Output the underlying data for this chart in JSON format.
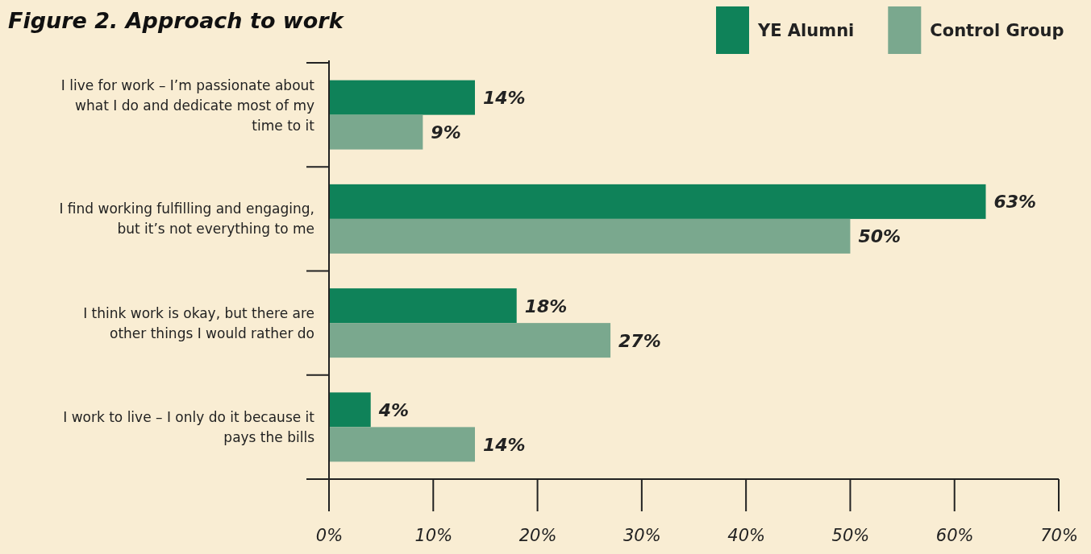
{
  "chart_data": {
    "type": "bar",
    "orientation": "horizontal",
    "title": "Figure 2. Approach to work",
    "categories": [
      "I live for work – I’m passionate about what I do and dedicate most of my time to it",
      "I find working fulfilling and engaging, but it’s not everything to me",
      "I think work is okay, but there are other things I would rather do",
      "I work to live – I only do it because it pays the bills"
    ],
    "series": [
      {
        "name": "YE Alumni",
        "color": "#0f8259",
        "values": [
          14,
          63,
          18,
          4
        ],
        "value_labels": [
          "14%",
          "63%",
          "18%",
          "4%"
        ]
      },
      {
        "name": "Control Group",
        "color": "#7aa88e",
        "values": [
          9,
          50,
          27,
          14
        ],
        "value_labels": [
          "9%",
          "50%",
          "27%",
          "14%"
        ]
      }
    ],
    "xlim": [
      0,
      70
    ],
    "xticks": [
      {
        "value": 0,
        "label": "0%"
      },
      {
        "value": 10,
        "label": "10%"
      },
      {
        "value": 20,
        "label": "20%"
      },
      {
        "value": 30,
        "label": "30%"
      },
      {
        "value": 40,
        "label": "40%"
      },
      {
        "value": 50,
        "label": "50%"
      },
      {
        "value": 60,
        "label": "60%"
      },
      {
        "value": 70,
        "label": "70%"
      }
    ],
    "grid": false,
    "legend": "top right"
  }
}
